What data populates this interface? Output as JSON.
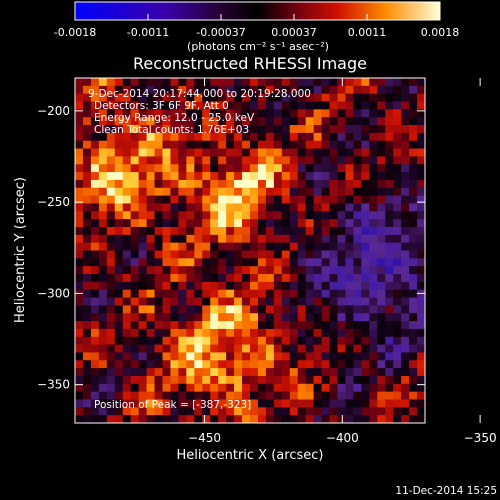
{
  "chart_data": {
    "type": "heatmap",
    "title": "Reconstructed RHESSI Image",
    "xlabel": "Heliocentric X (arcsec)",
    "ylabel": "Heliocentric Y (arcsec)",
    "xlim": [
      -497,
      -370
    ],
    "ylim": [
      -371,
      -182
    ],
    "x_ticks": [
      -450,
      -400,
      -350
    ],
    "y_ticks": [
      -200,
      -250,
      -300,
      -350
    ],
    "colorbar": {
      "ticks": [
        "-0.0018",
        "-0.0011",
        "-0.00037",
        "0.00037",
        "0.0011",
        "0.0018"
      ],
      "range": [
        -0.0018,
        0.0018
      ],
      "unit_label": "(photons cm⁻² s⁻¹ asec⁻²)"
    },
    "annotations": {
      "time_range": "9-Dec-2014 20:17:44.000 to 20:19:28.000",
      "detectors": "Detectors: 3F 6F 9F, Att 0",
      "energy_range": "Energy Range: 12.0 - 25.0 keV",
      "clean": "Clean    Total counts: 1.76E+03",
      "peak": "Position of Peak = [-387,-323]"
    },
    "peak_position": [
      -387,
      -323
    ],
    "footer_date": "11-Dec-2014 15:25"
  }
}
